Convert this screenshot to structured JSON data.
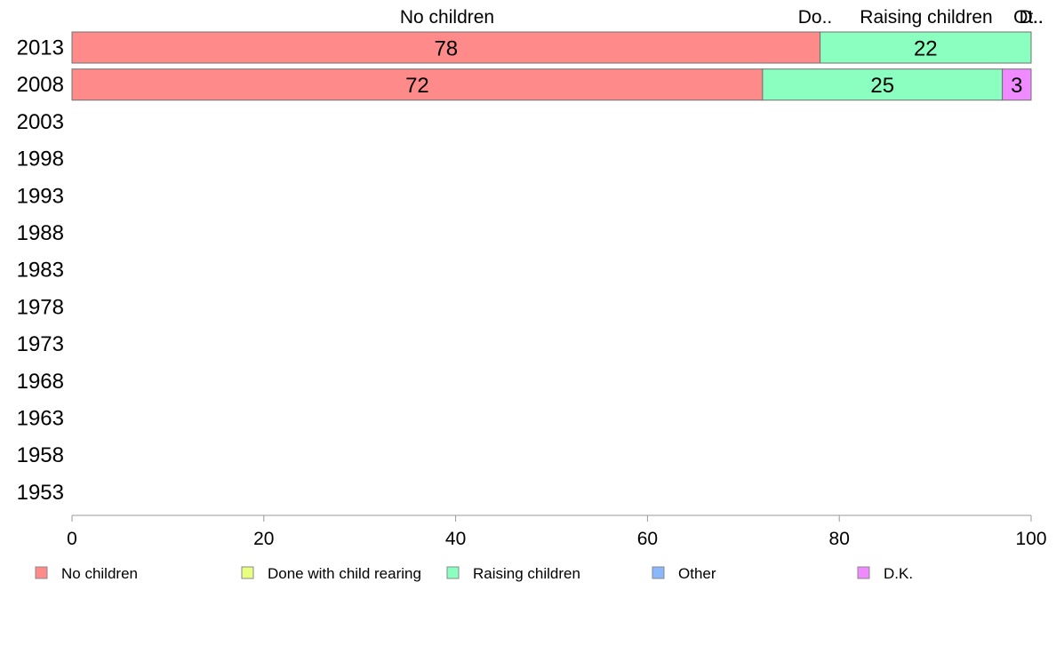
{
  "chart_data": {
    "type": "bar",
    "orientation": "horizontal",
    "stacked": true,
    "categories": [
      "2013",
      "2008",
      "2003",
      "1998",
      "1993",
      "1988",
      "1983",
      "1978",
      "1973",
      "1968",
      "1963",
      "1958",
      "1953"
    ],
    "series": [
      {
        "name": "No children",
        "color": "#ff8a8a",
        "values": [
          78,
          72,
          null,
          null,
          null,
          null,
          null,
          null,
          null,
          null,
          null,
          null,
          null
        ]
      },
      {
        "name": "Done with child rearing",
        "color": "#e8ff80",
        "values": [
          0,
          0,
          null,
          null,
          null,
          null,
          null,
          null,
          null,
          null,
          null,
          null,
          null
        ]
      },
      {
        "name": "Raising children",
        "color": "#8affbf",
        "values": [
          22,
          25,
          null,
          null,
          null,
          null,
          null,
          null,
          null,
          null,
          null,
          null,
          null
        ]
      },
      {
        "name": "Other",
        "color": "#8ab8ff",
        "values": [
          0,
          0,
          null,
          null,
          null,
          null,
          null,
          null,
          null,
          null,
          null,
          null,
          null
        ]
      },
      {
        "name": "D.K.",
        "color": "#f08aff",
        "values": [
          0,
          3,
          null,
          null,
          null,
          null,
          null,
          null,
          null,
          null,
          null,
          null,
          null
        ]
      }
    ],
    "top_labels": [
      "No children",
      "Do..",
      "Raising children",
      "Ot..",
      "D.."
    ],
    "xlim": [
      0,
      100
    ],
    "xticks": [
      0,
      20,
      40,
      60,
      80,
      100
    ],
    "grid": false,
    "legend": "bottom"
  }
}
